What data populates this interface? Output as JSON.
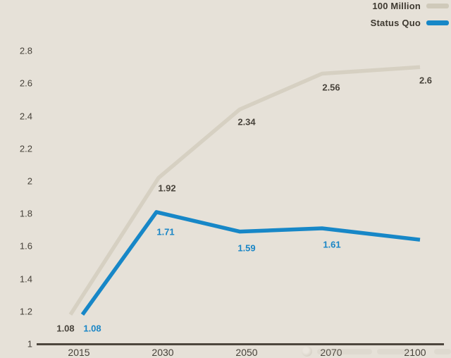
{
  "chart_data": {
    "type": "line",
    "categories": [
      "2015",
      "2030",
      "2050",
      "2070",
      "2100"
    ],
    "series": [
      {
        "name": "100 Million",
        "values": [
          1.08,
          1.92,
          2.34,
          2.56,
          2.6
        ],
        "point_labels": [
          "1.08",
          "1.92",
          "2.34",
          "2.56",
          "2.6"
        ],
        "color": "#d6d0c2",
        "label_color": "#48433b"
      },
      {
        "name": "Status Quo",
        "values": [
          1.08,
          1.71,
          1.59,
          1.61,
          1.54
        ],
        "point_labels": [
          "1.08",
          "1.71",
          "1.59",
          "1.61",
          null
        ],
        "color": "#1787c7",
        "label_color": "#1a86c6"
      }
    ],
    "ylim": [
      1,
      2.8
    ],
    "ytick_labels": [
      "1",
      "1.2",
      "1.4",
      "1.6",
      "1.8",
      "2",
      "2.2",
      "2.4",
      "2.6",
      "2.8"
    ],
    "xlabel": "",
    "ylabel": "",
    "title": "",
    "grid": false,
    "legend_position": "top-right",
    "background_color": "#e6e1d8",
    "axis_color": "#4d463d",
    "tick_text_color": "#47423a"
  }
}
